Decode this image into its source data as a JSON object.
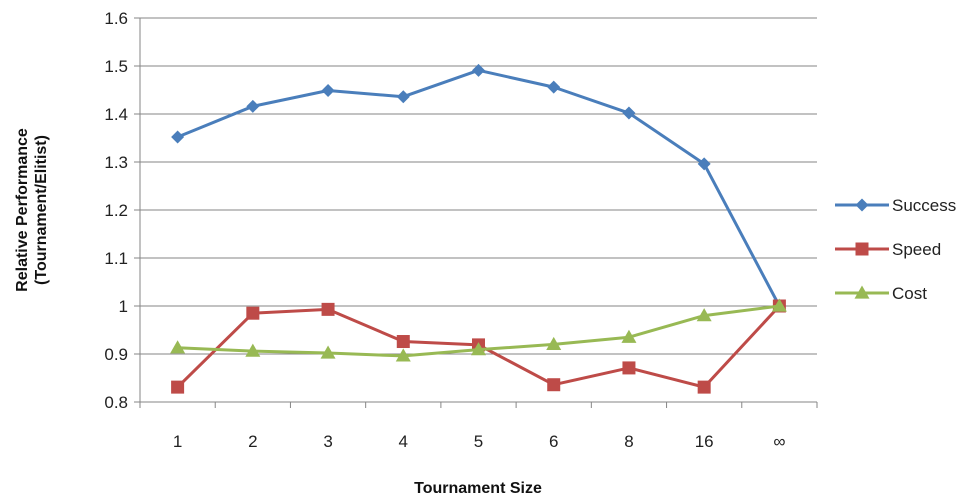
{
  "chart_data": {
    "type": "line",
    "categories": [
      "1",
      "2",
      "3",
      "4",
      "5",
      "6",
      "8",
      "16",
      "∞"
    ],
    "series": [
      {
        "name": "Success",
        "color": "#4a7ebb",
        "marker": "diamond",
        "values": [
          1.352,
          1.416,
          1.449,
          1.436,
          1.491,
          1.456,
          1.402,
          1.296,
          1.0
        ]
      },
      {
        "name": "Speed",
        "color": "#be4b48",
        "marker": "square",
        "values": [
          0.831,
          0.985,
          0.993,
          0.926,
          0.919,
          0.836,
          0.871,
          0.831,
          1.0
        ]
      },
      {
        "name": "Cost",
        "color": "#98b954",
        "marker": "triangle",
        "values": [
          0.913,
          0.906,
          0.902,
          0.896,
          0.909,
          0.92,
          0.935,
          0.98,
          1.0
        ]
      }
    ],
    "yticks": [
      "0.8",
      "0.9",
      "1",
      "1.1",
      "1.2",
      "1.3",
      "1.4",
      "1.5",
      "1.6"
    ],
    "ylim": [
      0.8,
      1.6
    ],
    "xlabel": "Tournament Size",
    "ylabel_line1": "Relative Performance",
    "ylabel_line2": "(Tournament/Elitist)",
    "grid": "horizontal",
    "legend": "right"
  }
}
